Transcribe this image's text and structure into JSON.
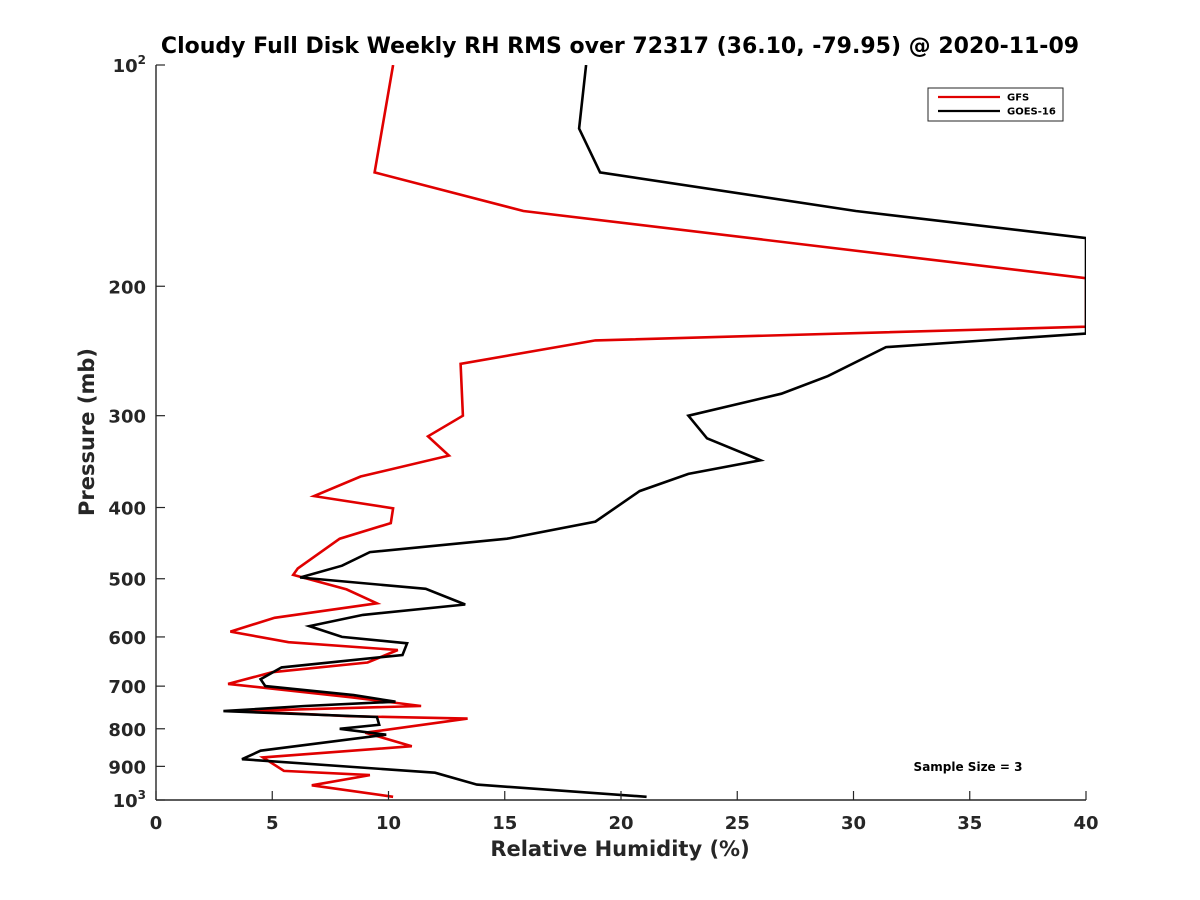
{
  "chart_data": {
    "type": "line",
    "title": "Cloudy Full Disk Weekly RH RMS over 72317 (36.10, -79.95) @ 2020-11-09",
    "xlabel": "Relative Humidity (%)",
    "ylabel": "Pressure (mb)",
    "xlim": [
      0,
      40
    ],
    "ylim": [
      100,
      1000
    ],
    "yscale": "log",
    "y_reversed": true,
    "grid": false,
    "legend_position": "top-right",
    "x_ticks": [
      "0",
      "5",
      "10",
      "15",
      "20",
      "25",
      "30",
      "35",
      "40"
    ],
    "y_ticks": [
      {
        "value": 100,
        "base": "10",
        "exp": "2"
      },
      {
        "value": 200,
        "label": "200"
      },
      {
        "value": 300,
        "label": "300"
      },
      {
        "value": 400,
        "label": "400"
      },
      {
        "value": 500,
        "label": "500"
      },
      {
        "value": 600,
        "label": "600"
      },
      {
        "value": 700,
        "label": "700"
      },
      {
        "value": 800,
        "label": "800"
      },
      {
        "value": 900,
        "label": "900"
      },
      {
        "value": 1000,
        "base": "10",
        "exp": "3"
      }
    ],
    "series": [
      {
        "name": "GFS",
        "color": "#e00000",
        "points": [
          [
            10.2,
            100
          ],
          [
            9.4,
            140
          ],
          [
            15.8,
            158
          ],
          [
            40,
            195
          ],
          [
            40,
            227
          ],
          [
            18.9,
            237
          ],
          [
            13.1,
            255
          ],
          [
            13.2,
            300
          ],
          [
            11.7,
            320
          ],
          [
            12.6,
            340
          ],
          [
            8.8,
            363
          ],
          [
            6.8,
            386
          ],
          [
            10.2,
            401
          ],
          [
            10.1,
            420
          ],
          [
            7.9,
            441
          ],
          [
            6.1,
            484
          ],
          [
            5.9,
            494
          ],
          [
            8.2,
            517
          ],
          [
            9.5,
            540
          ],
          [
            5.1,
            565
          ],
          [
            3.2,
            590
          ],
          [
            5.7,
            610
          ],
          [
            10.4,
            625
          ],
          [
            9.1,
            650
          ],
          [
            5.0,
            670
          ],
          [
            3.1,
            695
          ],
          [
            5.6,
            709
          ],
          [
            8.4,
            725
          ],
          [
            11.4,
            745
          ],
          [
            3.5,
            757
          ],
          [
            5.7,
            762
          ],
          [
            8.3,
            769
          ],
          [
            13.4,
            775
          ],
          [
            9.0,
            810
          ],
          [
            11.0,
            845
          ],
          [
            4.6,
            875
          ],
          [
            5.5,
            913
          ],
          [
            9.2,
            925
          ],
          [
            6.7,
            955
          ],
          [
            10.2,
            990
          ]
        ]
      },
      {
        "name": "GOES-16",
        "color": "#000000",
        "points": [
          [
            18.5,
            100
          ],
          [
            18.2,
            122
          ],
          [
            19.1,
            140
          ],
          [
            30.1,
            158
          ],
          [
            40,
            172
          ],
          [
            40,
            232
          ],
          [
            31.4,
            242
          ],
          [
            28.9,
            265
          ],
          [
            26.9,
            280
          ],
          [
            22.9,
            300
          ],
          [
            23.7,
            322
          ],
          [
            26.0,
            345
          ],
          [
            22.9,
            360
          ],
          [
            20.8,
            380
          ],
          [
            18.9,
            418
          ],
          [
            15.1,
            441
          ],
          [
            9.2,
            460
          ],
          [
            8.0,
            480
          ],
          [
            6.2,
            498
          ],
          [
            11.6,
            516
          ],
          [
            13.3,
            542
          ],
          [
            8.9,
            560
          ],
          [
            6.6,
            580
          ],
          [
            8.0,
            600
          ],
          [
            10.8,
            612
          ],
          [
            10.6,
            635
          ],
          [
            5.4,
            660
          ],
          [
            4.5,
            685
          ],
          [
            4.7,
            700
          ],
          [
            8.5,
            720
          ],
          [
            10.3,
            735
          ],
          [
            6.4,
            745
          ],
          [
            2.9,
            757
          ],
          [
            9.5,
            771
          ],
          [
            9.6,
            790
          ],
          [
            7.9,
            800
          ],
          [
            9.9,
            815
          ],
          [
            4.5,
            857
          ],
          [
            3.7,
            880
          ],
          [
            12.0,
            918
          ],
          [
            13.8,
            953
          ],
          [
            21.1,
            990
          ]
        ]
      }
    ],
    "annotation": "Sample Size = 3"
  }
}
